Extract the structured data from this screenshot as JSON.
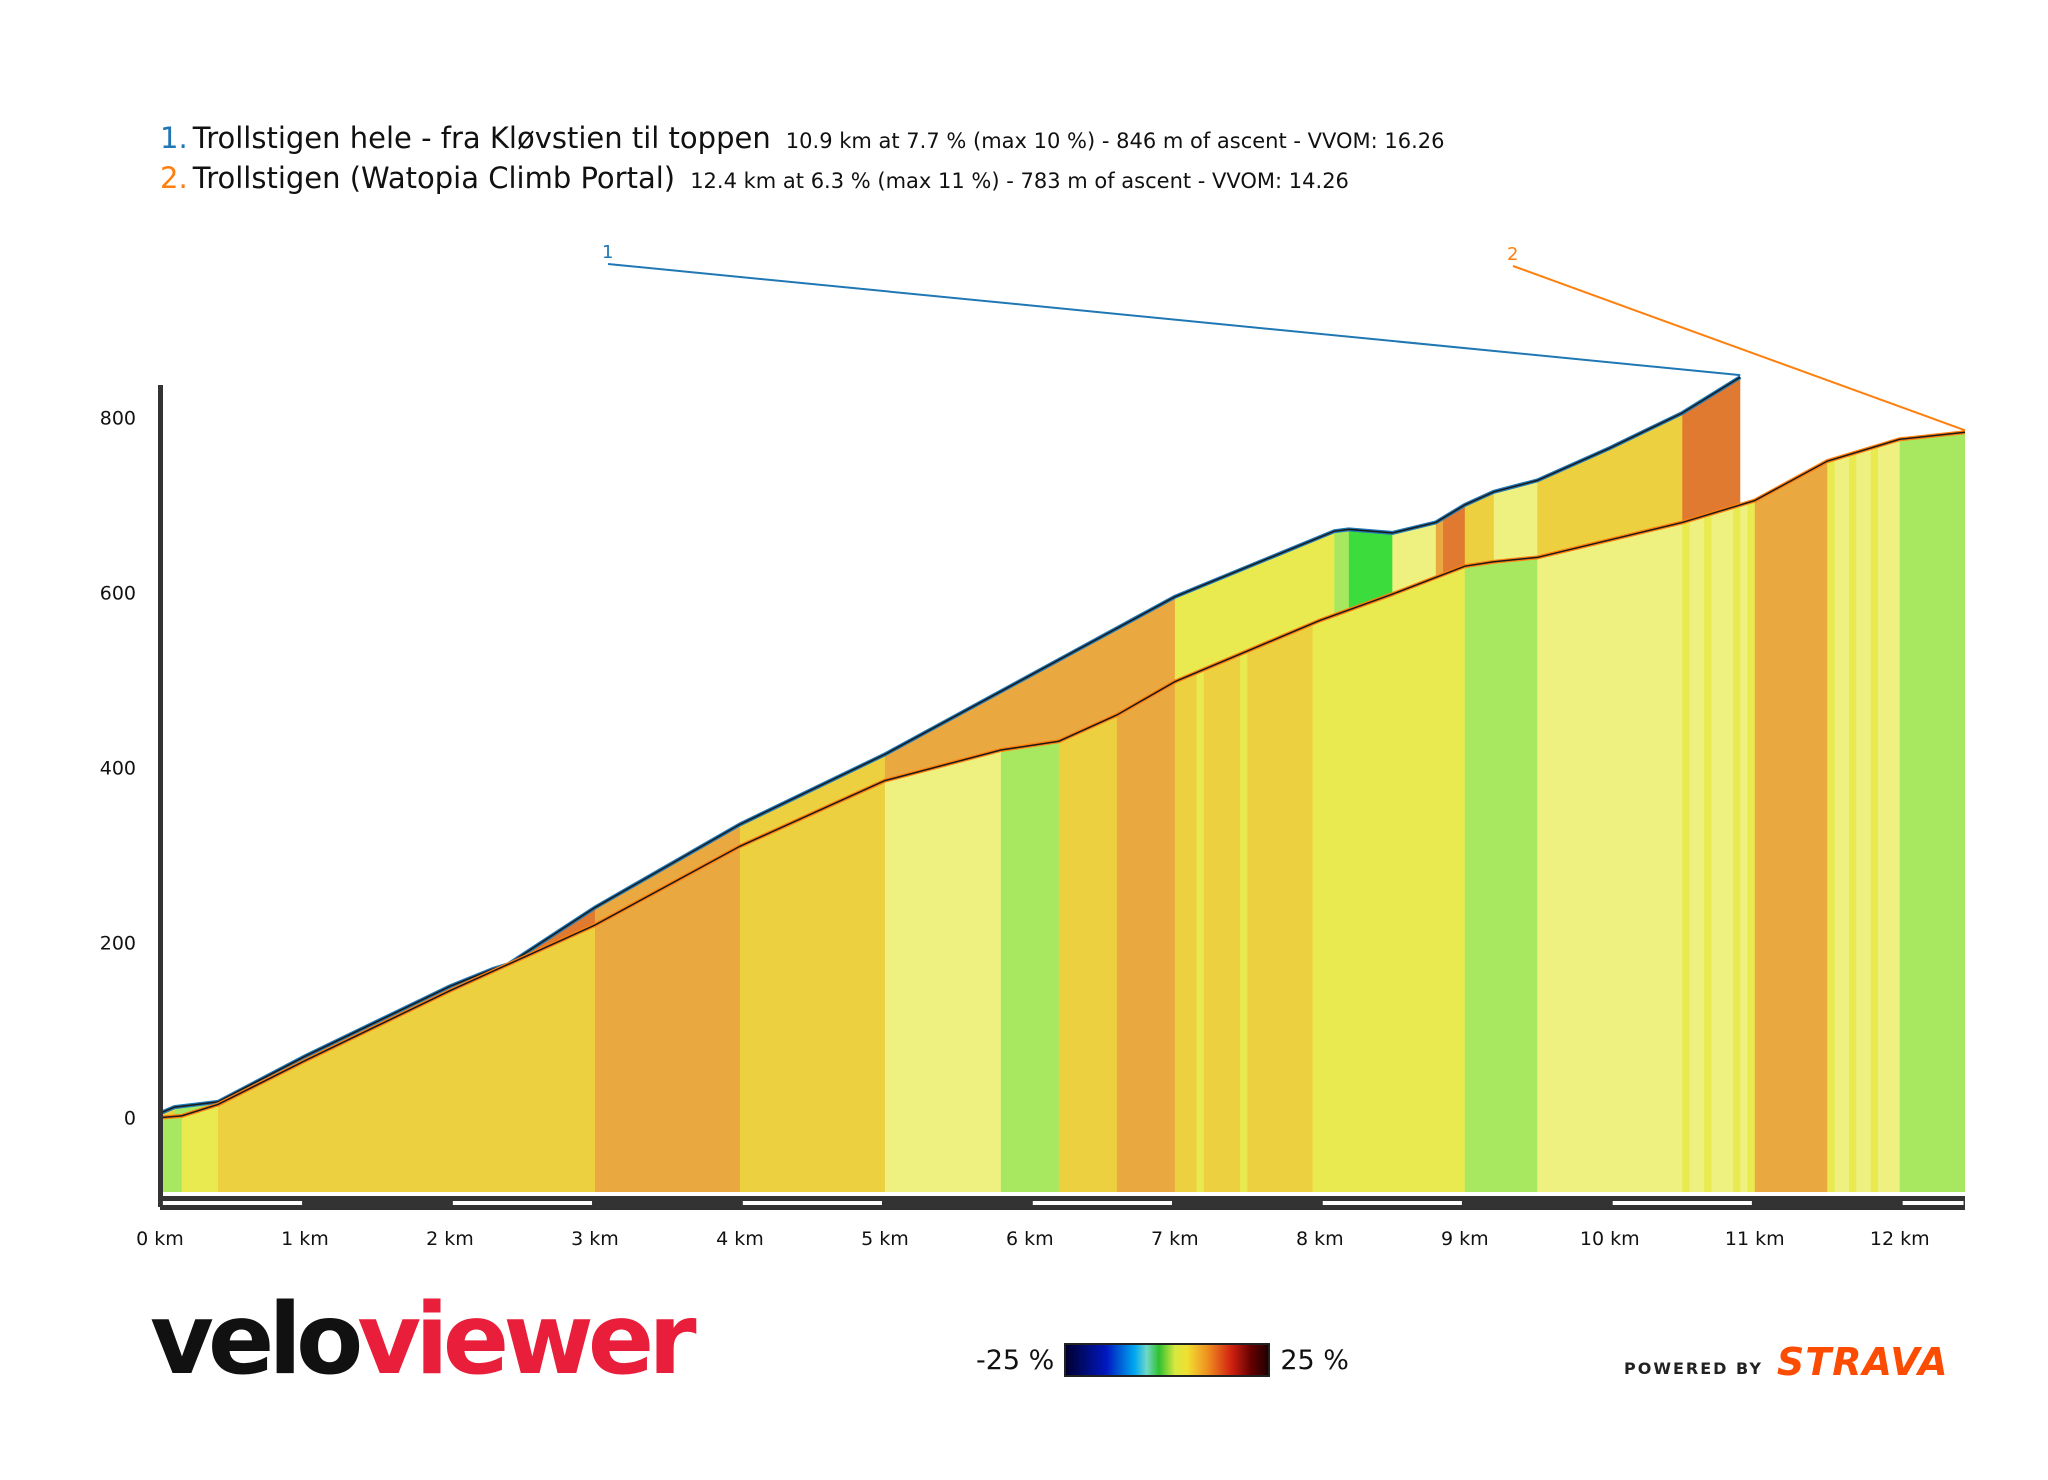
{
  "header": {
    "segments": [
      {
        "num": "1.",
        "name": "Trollstigen hele - fra Kløvstien til toppen",
        "details": "10.9 km at 7.7 % (max 10 %) - 846 m of ascent - VVOM: 16.26",
        "color": "#1f77b4"
      },
      {
        "num": "2.",
        "name": "Trollstigen (Watopia Climb Portal)",
        "details": "12.4 km at 6.3 % (max 11 %) - 783 m of ascent - VVOM: 14.26",
        "color": "#ff7f0e"
      }
    ]
  },
  "chart_data": {
    "type": "area",
    "xlabel": "",
    "ylabel": "",
    "x_unit": "km",
    "xlim": [
      0,
      12.45
    ],
    "ylim": [
      -85,
      845
    ],
    "x_ticks": [
      "0 km",
      "1 km",
      "2 km",
      "3 km",
      "4 km",
      "5 km",
      "6 km",
      "7 km",
      "8 km",
      "9 km",
      "10 km",
      "11 km",
      "12 km"
    ],
    "y_ticks": [
      "0",
      "200",
      "400",
      "600",
      "800"
    ],
    "grid": false,
    "series": [
      {
        "marker_label": "1",
        "color": "#1f77b4",
        "x": [
          0,
          0.1,
          0.2,
          0.4,
          1.0,
          2.0,
          2.3,
          2.4,
          3.0,
          4.0,
          5.0,
          6.0,
          7.0,
          8.1,
          8.2,
          8.35,
          8.5,
          8.8,
          9.0,
          9.2,
          9.5,
          10.0,
          10.5,
          10.9
        ],
        "y": [
          5,
          12,
          14,
          18,
          70,
          150,
          170,
          175,
          240,
          335,
          415,
          505,
          595,
          670,
          672,
          670,
          668,
          680,
          700,
          715,
          728,
          765,
          805,
          846
        ]
      },
      {
        "marker_label": "2",
        "color": "#ff7f0e",
        "x": [
          0,
          0.15,
          0.4,
          1.0,
          2.0,
          3.0,
          4.0,
          5.0,
          5.8,
          6.2,
          6.6,
          7.0,
          8.0,
          8.5,
          9.0,
          9.2,
          9.5,
          10.0,
          10.5,
          11.0,
          11.5,
          12.0,
          12.45
        ],
        "y": [
          0,
          2,
          15,
          65,
          145,
          220,
          310,
          385,
          420,
          430,
          460,
          498,
          568,
          598,
          630,
          635,
          640,
          660,
          680,
          705,
          750,
          775,
          783
        ]
      }
    ],
    "gradient_legend": {
      "min_label": "-25 %",
      "max_label": "25 %"
    }
  },
  "branding": {
    "logo_left": "velo",
    "logo_right": "viewer",
    "powered_by": "POWERED BY",
    "strava": "STRAVA"
  }
}
